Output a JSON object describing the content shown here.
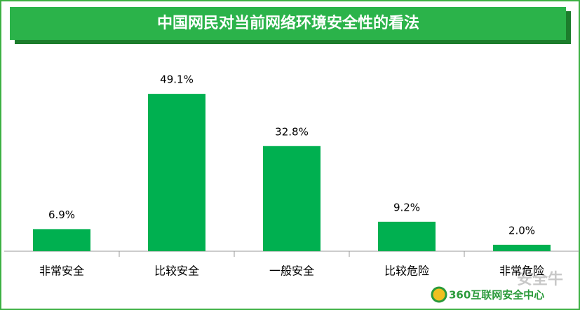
{
  "chart_data": {
    "type": "bar",
    "title": "中国网民对当前网络环境安全性的看法",
    "categories": [
      "非常安全",
      "比较安全",
      "一般安全",
      "比较危险",
      "非常危险"
    ],
    "values": [
      6.9,
      49.1,
      32.8,
      9.2,
      2.0
    ],
    "value_labels": [
      "6.9%",
      "49.1%",
      "32.8%",
      "9.2%",
      "2.0%"
    ],
    "color": "#00b050",
    "logo": "360互联网安全中心",
    "watermark": "安全牛"
  }
}
